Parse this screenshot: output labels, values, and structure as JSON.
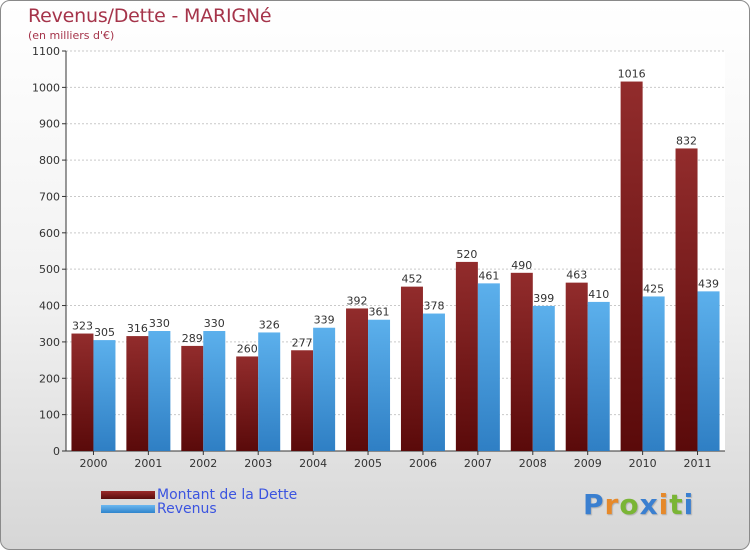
{
  "chart_data": {
    "type": "bar",
    "title": "Revenus/Dette - MARIGNé",
    "subtitle": "(en milliers d'€)",
    "categories": [
      "2000",
      "2001",
      "2002",
      "2003",
      "2004",
      "2005",
      "2006",
      "2007",
      "2008",
      "2009",
      "2010",
      "2011"
    ],
    "series": [
      {
        "name": "Montant de la Dette",
        "color": "#7b1a1a",
        "values": [
          323,
          316,
          289,
          260,
          277,
          392,
          452,
          520,
          490,
          463,
          1016,
          832
        ]
      },
      {
        "name": "Revenus",
        "color": "#4da3e6",
        "values": [
          305,
          330,
          330,
          326,
          339,
          361,
          378,
          461,
          399,
          410,
          425,
          439
        ]
      }
    ],
    "ylim": [
      0,
      1100
    ],
    "yticks": [
      0,
      100,
      200,
      300,
      400,
      500,
      600,
      700,
      800,
      900,
      1000,
      1100
    ],
    "grid": true,
    "legend_position": "bottom-left"
  },
  "logo": {
    "letters": [
      "P",
      "r",
      "o",
      "x",
      "i",
      "t",
      "i"
    ],
    "colors": [
      "#3a7fd0",
      "#e6892a",
      "#7ab535",
      "#3a7fd0",
      "#e6892a",
      "#7ab535",
      "#3a7fd0"
    ]
  }
}
